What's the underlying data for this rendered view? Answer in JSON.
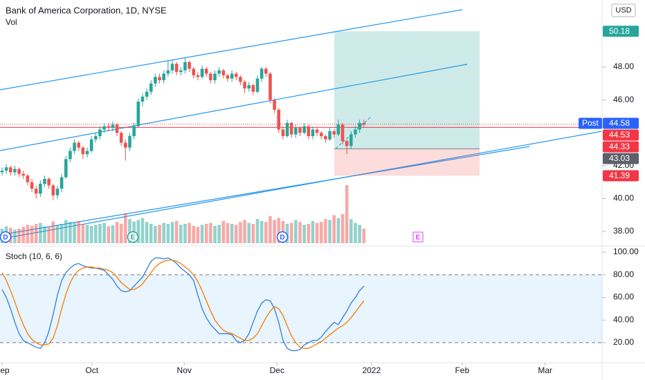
{
  "chart_data": [
    {
      "type": "candlestick",
      "title": "Bank of America Corporation, 1D, NYSE",
      "volume_label": "Vol",
      "currency": "USD",
      "up_color": "#26a69a",
      "down_color": "#ef5350",
      "ylim": [
        37.16,
        52.08
      ],
      "yticks": [
        {
          "value": 38,
          "label": "38.00"
        },
        {
          "value": 40,
          "label": "40.00"
        },
        {
          "value": 42,
          "label": "42.00"
        },
        {
          "value": 46,
          "label": "46.00"
        },
        {
          "value": 48,
          "label": "48.00"
        }
      ],
      "candles": [
        [
          41.6,
          41.9,
          41.4,
          41.7
        ],
        [
          41.7,
          42.1,
          41.5,
          41.9
        ],
        [
          41.9,
          42.0,
          41.4,
          41.6
        ],
        [
          41.6,
          42.0,
          41.4,
          41.8
        ],
        [
          41.8,
          41.9,
          41.3,
          41.5
        ],
        [
          41.5,
          41.7,
          41.2,
          41.4
        ],
        [
          41.4,
          41.5,
          40.8,
          41.0
        ],
        [
          41.0,
          41.2,
          40.4,
          40.6
        ],
        [
          40.6,
          40.8,
          40.0,
          40.3
        ],
        [
          40.3,
          41.1,
          40.1,
          40.9
        ],
        [
          40.9,
          41.4,
          40.7,
          41.2
        ],
        [
          41.2,
          41.3,
          40.6,
          40.8
        ],
        [
          40.8,
          40.9,
          39.9,
          40.2
        ],
        [
          40.2,
          40.8,
          40.0,
          40.6
        ],
        [
          40.6,
          41.5,
          40.4,
          41.3
        ],
        [
          41.3,
          42.6,
          41.2,
          42.4
        ],
        [
          42.4,
          43.1,
          42.2,
          42.9
        ],
        [
          42.9,
          43.6,
          42.7,
          43.4
        ],
        [
          43.4,
          43.5,
          42.9,
          43.1
        ],
        [
          43.1,
          43.2,
          42.4,
          42.7
        ],
        [
          42.7,
          43.1,
          42.5,
          42.9
        ],
        [
          42.9,
          43.8,
          42.8,
          43.6
        ],
        [
          43.6,
          44.0,
          43.4,
          43.8
        ],
        [
          43.8,
          44.4,
          43.6,
          44.2
        ],
        [
          44.2,
          44.6,
          44.0,
          44.4
        ],
        [
          44.4,
          44.6,
          44.1,
          44.3
        ],
        [
          44.3,
          44.7,
          44.1,
          44.5
        ],
        [
          44.5,
          44.6,
          43.8,
          44.0
        ],
        [
          44.0,
          44.1,
          43.2,
          43.4
        ],
        [
          43.4,
          43.6,
          42.3,
          43.1
        ],
        [
          43.1,
          44.0,
          42.9,
          43.8
        ],
        [
          43.8,
          44.6,
          43.6,
          44.4
        ],
        [
          44.4,
          46.1,
          44.3,
          45.9
        ],
        [
          45.9,
          46.4,
          45.6,
          46.2
        ],
        [
          46.2,
          46.7,
          46.0,
          46.5
        ],
        [
          46.5,
          47.2,
          46.3,
          47.0
        ],
        [
          47.0,
          47.6,
          46.8,
          47.4
        ],
        [
          47.4,
          47.6,
          47.0,
          47.2
        ],
        [
          47.2,
          47.8,
          47.0,
          47.6
        ],
        [
          47.6,
          48.4,
          47.4,
          47.8
        ],
        [
          47.8,
          48.4,
          47.6,
          48.2
        ],
        [
          48.2,
          48.3,
          47.5,
          47.7
        ],
        [
          47.7,
          48.0,
          47.5,
          47.8
        ],
        [
          47.8,
          48.6,
          47.6,
          48.3
        ],
        [
          48.3,
          48.4,
          47.7,
          47.9
        ],
        [
          47.9,
          48.0,
          47.3,
          47.5
        ],
        [
          47.5,
          47.7,
          47.2,
          47.4
        ],
        [
          47.4,
          48.1,
          47.3,
          47.9
        ],
        [
          47.9,
          48.0,
          47.4,
          47.6
        ],
        [
          47.6,
          47.7,
          47.0,
          47.2
        ],
        [
          47.2,
          47.8,
          47.0,
          47.6
        ],
        [
          47.6,
          48.0,
          47.4,
          47.8
        ],
        [
          47.8,
          47.9,
          47.3,
          47.5
        ],
        [
          47.5,
          47.6,
          47.1,
          47.3
        ],
        [
          47.3,
          47.8,
          47.1,
          47.6
        ],
        [
          47.6,
          47.7,
          47.2,
          47.4
        ],
        [
          47.4,
          47.5,
          46.9,
          47.1
        ],
        [
          47.1,
          47.2,
          46.4,
          46.7
        ],
        [
          46.7,
          47.1,
          46.5,
          46.9
        ],
        [
          46.9,
          47.0,
          46.3,
          46.5
        ],
        [
          46.5,
          47.5,
          46.4,
          47.3
        ],
        [
          47.3,
          48.0,
          47.1,
          47.9
        ],
        [
          47.9,
          48.0,
          47.4,
          47.6
        ],
        [
          47.6,
          47.7,
          45.8,
          46.0
        ],
        [
          46.0,
          46.1,
          45.2,
          45.4
        ],
        [
          45.4,
          45.5,
          44.0,
          44.2
        ],
        [
          44.2,
          44.4,
          43.6,
          43.8
        ],
        [
          43.8,
          44.8,
          43.7,
          44.6
        ],
        [
          44.6,
          44.7,
          43.7,
          43.9
        ],
        [
          43.9,
          44.5,
          43.7,
          44.3
        ],
        [
          44.3,
          44.4,
          43.8,
          44.0
        ],
        [
          44.0,
          44.6,
          43.9,
          44.4
        ],
        [
          44.4,
          44.5,
          43.6,
          43.8
        ],
        [
          43.8,
          44.4,
          43.6,
          44.2
        ],
        [
          44.2,
          44.3,
          43.8,
          44.0
        ],
        [
          44.0,
          44.1,
          43.6,
          43.8
        ],
        [
          43.8,
          43.9,
          43.4,
          43.6
        ],
        [
          43.6,
          44.3,
          43.5,
          44.1
        ],
        [
          44.1,
          44.2,
          43.7,
          43.9
        ],
        [
          43.9,
          44.8,
          43.8,
          44.5
        ],
        [
          44.5,
          44.6,
          43.3,
          43.5
        ],
        [
          43.5,
          43.6,
          42.7,
          43.2
        ],
        [
          43.2,
          44.1,
          43.0,
          43.9
        ],
        [
          43.9,
          44.4,
          43.7,
          44.2
        ],
        [
          44.2,
          44.8,
          44.0,
          44.6
        ],
        [
          44.6,
          44.8,
          44.3,
          44.5
        ]
      ],
      "volume": [
        30,
        35,
        32,
        28,
        30,
        34,
        38,
        36,
        40,
        42,
        35,
        33,
        45,
        38,
        40,
        48,
        44,
        42,
        46,
        40,
        38,
        36,
        38,
        40,
        42,
        35,
        37,
        44,
        40,
        62,
        50,
        45,
        48,
        52,
        44,
        40,
        36,
        38,
        42,
        40,
        44,
        46,
        38,
        40,
        42,
        36,
        34,
        38,
        40,
        42,
        36,
        38,
        46,
        42,
        40,
        38,
        44,
        48,
        42,
        40,
        50,
        46,
        44,
        56,
        48,
        52,
        46,
        40,
        42,
        48,
        44,
        38,
        40,
        46,
        42,
        44,
        50,
        48,
        58,
        52,
        60,
        120,
        50,
        42,
        38,
        30
      ],
      "price_labels": [
        {
          "value": 50.18,
          "color": "#26a69a"
        },
        {
          "value": 44.58,
          "color": "#2962ff"
        },
        {
          "value": 44.53,
          "color": "#f23645",
          "line": "dotted"
        },
        {
          "value": 44.33,
          "color": "#f23645",
          "line": "solid"
        },
        {
          "value": 43.03,
          "color": "#5d606b"
        },
        {
          "value": 41.39,
          "color": "#f23645"
        }
      ],
      "post_label": "Post",
      "markers": [
        {
          "text": "D",
          "color": "#2962ff"
        },
        {
          "text": "E",
          "color": "#26a69a"
        },
        {
          "text": "D",
          "color": "#2962ff"
        },
        {
          "text": "E",
          "color": "#e040fb"
        }
      ]
    },
    {
      "type": "line",
      "title": "Stoch (10, 6, 6)",
      "ylim": [
        2.3,
        104.3
      ],
      "yticks": [
        {
          "value": 20,
          "label": "20.00"
        },
        {
          "value": 40,
          "label": "40.00"
        },
        {
          "value": 60,
          "label": "60.00"
        },
        {
          "value": 80,
          "label": "80.00"
        },
        {
          "value": 100,
          "label": "100.00"
        }
      ],
      "band": [
        20,
        80
      ],
      "xticks": [
        {
          "value": 0,
          "label": "Sep"
        },
        {
          "value": 21.1,
          "label": "Oct"
        },
        {
          "value": 42.8,
          "label": "Nov"
        },
        {
          "value": 64.6,
          "label": "Dec"
        },
        {
          "value": 86.8,
          "label": "2022"
        },
        {
          "value": 108.1,
          "label": "Feb"
        },
        {
          "value": 127.6,
          "label": "Mar"
        }
      ],
      "series": [
        {
          "color": "#2f7ddc",
          "values": [
            67,
            60,
            50,
            38,
            28,
            22,
            20,
            18,
            16,
            15,
            20,
            30,
            45,
            62,
            75,
            82,
            86,
            89,
            90,
            88,
            87,
            86,
            86,
            85,
            84,
            80,
            76,
            70,
            66,
            65,
            66,
            70,
            74,
            78,
            85,
            92,
            95,
            95,
            94,
            95,
            93,
            90,
            86,
            83,
            80,
            75,
            62,
            50,
            42,
            36,
            32,
            28,
            28,
            28,
            27,
            22,
            20,
            22,
            28,
            38,
            48,
            55,
            58,
            57,
            50,
            38,
            22,
            15,
            13,
            13,
            14,
            18,
            20,
            22,
            22,
            25,
            30,
            34,
            38,
            36,
            42,
            48,
            55,
            60,
            66,
            70
          ]
        },
        {
          "color": "#f57c00",
          "values": [
            82,
            75,
            66,
            56,
            45,
            36,
            28,
            23,
            20,
            18,
            18,
            19,
            24,
            35,
            50,
            63,
            73,
            80,
            84,
            86,
            87,
            87,
            86,
            86,
            85,
            84,
            82,
            78,
            73,
            70,
            67,
            67,
            69,
            72,
            77,
            82,
            87,
            90,
            92,
            93,
            93,
            92,
            90,
            87,
            84,
            80,
            74,
            66,
            57,
            48,
            40,
            35,
            31,
            29,
            28,
            26,
            24,
            22,
            22,
            24,
            28,
            35,
            42,
            48,
            52,
            50,
            44,
            35,
            26,
            20,
            16,
            15,
            15,
            17,
            19,
            21,
            24,
            27,
            30,
            33,
            35,
            38,
            42,
            47,
            52,
            57
          ]
        }
      ]
    }
  ]
}
